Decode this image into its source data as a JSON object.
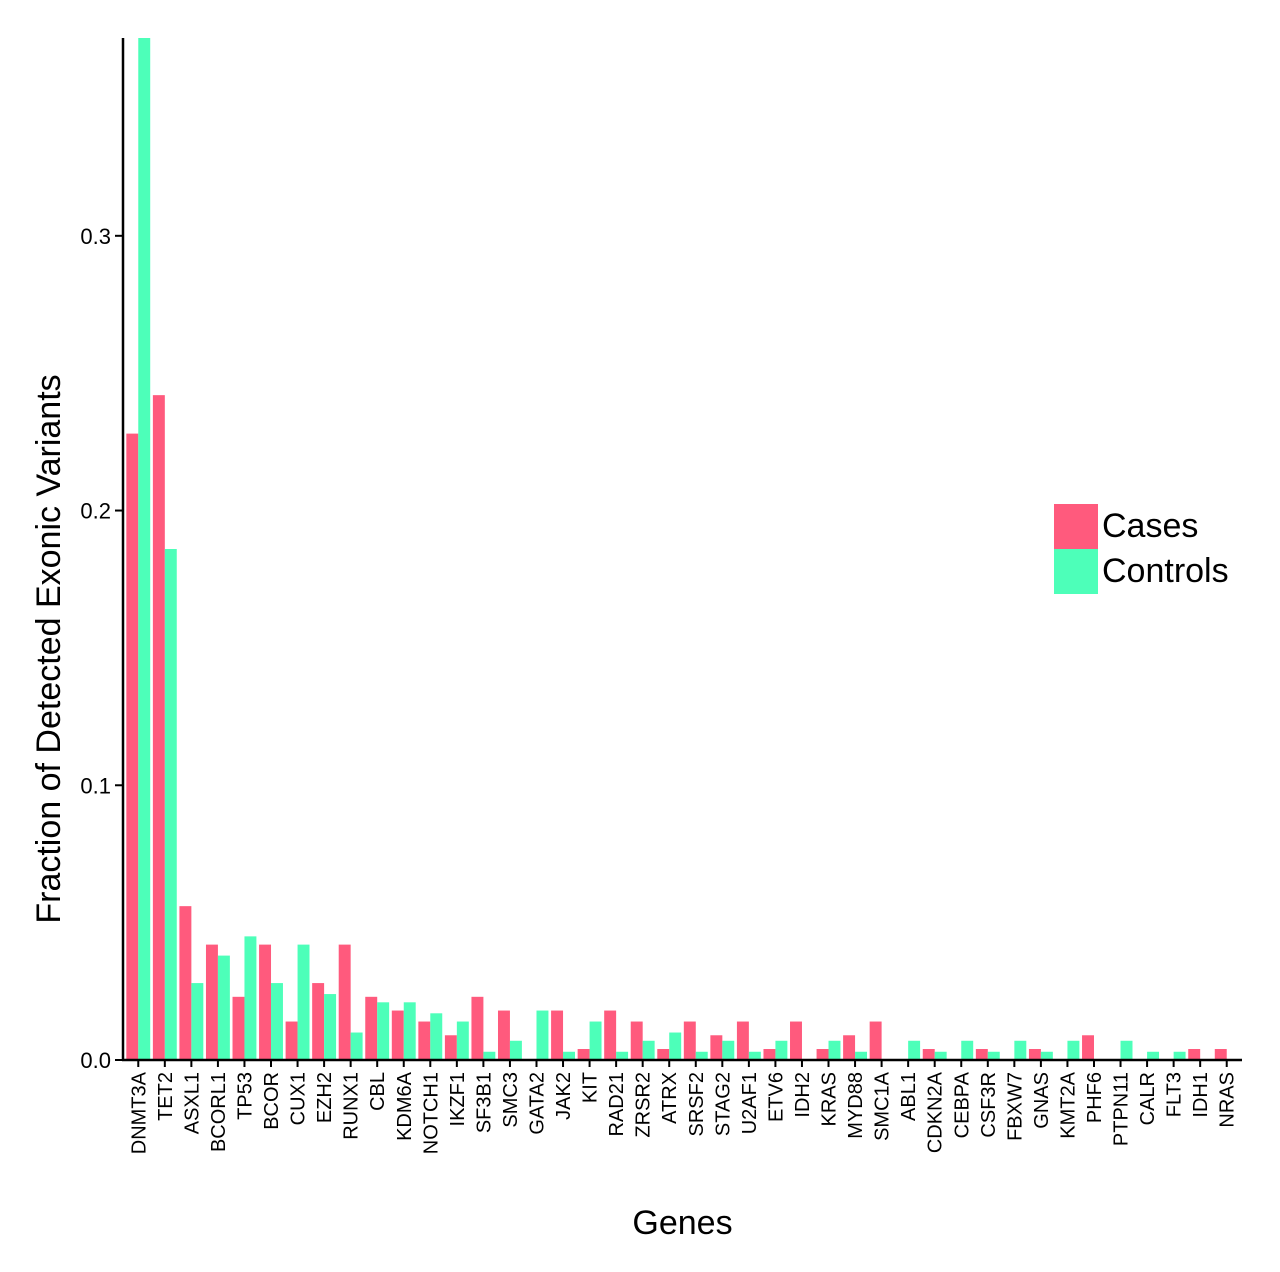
{
  "chart_data": {
    "type": "bar",
    "title": "",
    "xlabel": "Genes",
    "ylabel": "Fraction of Detected Exonic Variants",
    "ylim": [
      0,
      0.372
    ],
    "yticks": [
      0.0,
      0.1,
      0.2,
      0.3
    ],
    "ytick_labels": [
      "0.0",
      "0.1",
      "0.2",
      "0.3"
    ],
    "grid": false,
    "legend_position": "right",
    "categories": [
      "DNMT3A",
      "TET2",
      "ASXL1",
      "BCORL1",
      "TP53",
      "BCOR",
      "CUX1",
      "EZH2",
      "RUNX1",
      "CBL",
      "KDM6A",
      "NOTCH1",
      "IKZF1",
      "SF3B1",
      "SMC3",
      "GATA2",
      "JAK2",
      "KIT",
      "RAD21",
      "ZRSR2",
      "ATRX",
      "SRSF2",
      "STAG2",
      "U2AF1",
      "ETV6",
      "IDH2",
      "KRAS",
      "MYD88",
      "SMC1A",
      "ABL1",
      "CDKN2A",
      "CEBPA",
      "CSF3R",
      "FBXW7",
      "GNAS",
      "KMT2A",
      "PHF6",
      "PTPN11",
      "CALR",
      "FLT3",
      "IDH1",
      "NRAS"
    ],
    "series": [
      {
        "name": "Cases",
        "color": "#FF5A7D",
        "values": [
          0.228,
          0.242,
          0.056,
          0.042,
          0.023,
          0.042,
          0.014,
          0.028,
          0.042,
          0.023,
          0.018,
          0.014,
          0.009,
          0.023,
          0.018,
          0.0,
          0.018,
          0.004,
          0.018,
          0.014,
          0.004,
          0.014,
          0.009,
          0.014,
          0.004,
          0.014,
          0.004,
          0.009,
          0.014,
          0.0,
          0.004,
          0.0,
          0.004,
          0.0,
          0.004,
          0.0,
          0.009,
          0.0,
          0.0,
          0.0,
          0.004,
          0.004
        ]
      },
      {
        "name": "Controls",
        "color": "#4DFFB9",
        "values": [
          0.372,
          0.186,
          0.028,
          0.038,
          0.045,
          0.028,
          0.042,
          0.024,
          0.01,
          0.021,
          0.021,
          0.017,
          0.014,
          0.003,
          0.007,
          0.018,
          0.003,
          0.014,
          0.003,
          0.007,
          0.01,
          0.003,
          0.007,
          0.003,
          0.007,
          0.0,
          0.007,
          0.003,
          0.0,
          0.007,
          0.003,
          0.007,
          0.003,
          0.007,
          0.003,
          0.007,
          0.0,
          0.007,
          0.003,
          0.003,
          0.0,
          0.0
        ]
      }
    ]
  }
}
